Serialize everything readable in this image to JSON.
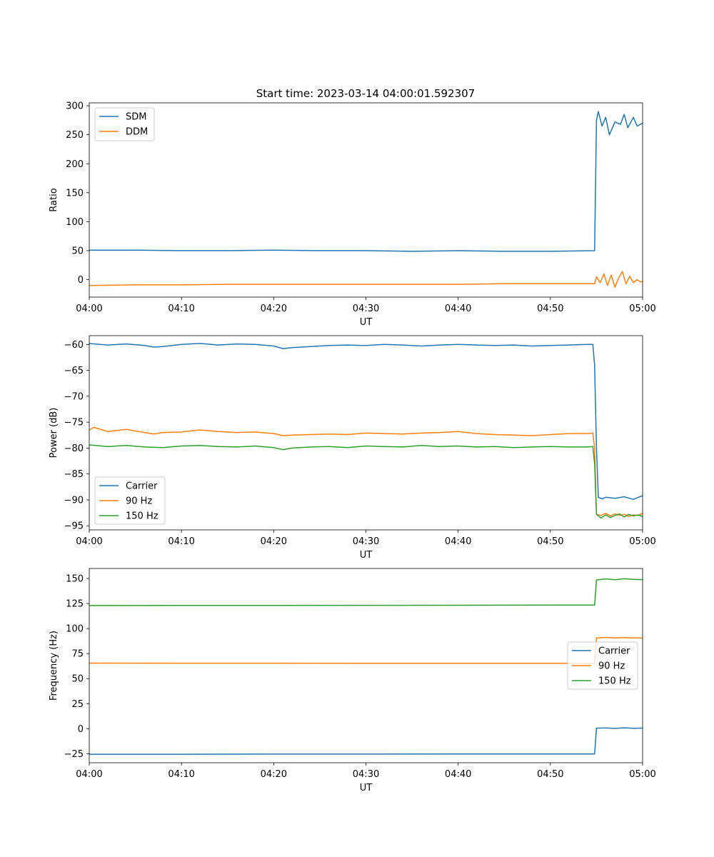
{
  "title": "Start time: 2023-03-14 04:00:01.592307",
  "chart_data": [
    {
      "type": "line",
      "xlabel": "UT",
      "ylabel": "Ratio",
      "x_unit": "minutes after 04:00 UT",
      "xlim": [
        0,
        60
      ],
      "ylim": [
        -30,
        305
      ],
      "xticks": [
        0,
        10,
        20,
        30,
        40,
        50,
        60
      ],
      "xtick_labels": [
        "04:00",
        "04:10",
        "04:20",
        "04:30",
        "04:40",
        "04:50",
        "05:00"
      ],
      "yticks": [
        0,
        50,
        100,
        150,
        200,
        250,
        300
      ],
      "ytick_labels": [
        "0",
        "50",
        "100",
        "150",
        "200",
        "250",
        "300"
      ],
      "legend_position": "upper-left",
      "series": [
        {
          "name": "SDM",
          "color": "#1f77b4",
          "x": [
            0,
            5,
            10,
            15,
            20,
            25,
            30,
            35,
            40,
            45,
            50,
            54.8,
            55,
            55.2,
            55.6,
            56,
            56.4,
            57,
            57.6,
            58,
            58.4,
            59,
            59.4,
            60
          ],
          "y": [
            51,
            51,
            50,
            50,
            51,
            50,
            50,
            49,
            50,
            49,
            49,
            50,
            275,
            290,
            265,
            280,
            250,
            272,
            268,
            285,
            262,
            280,
            265,
            270
          ]
        },
        {
          "name": "DDM",
          "color": "#ff7f0e",
          "x": [
            0,
            5,
            10,
            15,
            20,
            25,
            30,
            35,
            40,
            45,
            50,
            54.8,
            55,
            55.4,
            55.8,
            56.2,
            56.6,
            57,
            57.4,
            57.8,
            58.2,
            58.6,
            59,
            59.4,
            59.8,
            60
          ],
          "y": [
            -10,
            -9,
            -9,
            -8,
            -8,
            -8,
            -8,
            -8,
            -8,
            -7,
            -7,
            -7,
            5,
            -5,
            10,
            -10,
            8,
            -13,
            3,
            14,
            -7,
            6,
            -5,
            0,
            -4,
            -3
          ]
        }
      ]
    },
    {
      "type": "line",
      "xlabel": "UT",
      "ylabel": "Power (dB)",
      "x_unit": "minutes after 04:00 UT",
      "xlim": [
        0,
        60
      ],
      "ylim": [
        -95.8,
        -58.3
      ],
      "xticks": [
        0,
        10,
        20,
        30,
        40,
        50,
        60
      ],
      "xtick_labels": [
        "04:00",
        "04:10",
        "04:20",
        "04:30",
        "04:40",
        "04:50",
        "05:00"
      ],
      "yticks": [
        -95,
        -90,
        -85,
        -80,
        -75,
        -70,
        -65,
        -60
      ],
      "ytick_labels": [
        "−95",
        "−90",
        "−85",
        "−80",
        "−75",
        "−70",
        "−65",
        "−60"
      ],
      "legend_position": "lower-left",
      "series": [
        {
          "name": "Carrier",
          "color": "#1f77b4",
          "x": [
            0,
            2,
            4,
            6,
            7,
            8,
            10,
            12,
            14,
            16,
            18,
            20,
            21,
            22,
            24,
            26,
            28,
            30,
            32,
            34,
            36,
            38,
            40,
            42,
            44,
            46,
            48,
            50,
            52,
            54,
            54.6,
            54.8,
            55,
            55.2,
            55.6,
            56,
            57,
            58,
            59,
            60
          ],
          "y": [
            -59.8,
            -60.1,
            -59.9,
            -60.2,
            -60.5,
            -60.4,
            -60.0,
            -59.8,
            -60.1,
            -59.9,
            -60.0,
            -60.3,
            -60.8,
            -60.6,
            -60.4,
            -60.2,
            -60.1,
            -60.2,
            -60.0,
            -60.1,
            -60.3,
            -60.1,
            -60.0,
            -60.1,
            -60.2,
            -60.1,
            -60.3,
            -60.2,
            -60.1,
            -60.0,
            -60.0,
            -64,
            -80,
            -89.5,
            -89.8,
            -89.5,
            -89.7,
            -89.4,
            -89.9,
            -89.2
          ]
        },
        {
          "name": "90 Hz",
          "color": "#ff7f0e",
          "x": [
            0,
            0.5,
            2,
            4,
            6,
            7,
            8,
            10,
            12,
            14,
            16,
            18,
            20,
            21,
            22,
            24,
            26,
            28,
            30,
            32,
            34,
            36,
            38,
            40,
            42,
            44,
            46,
            48,
            50,
            52,
            54,
            54.6,
            54.8,
            55,
            55.5,
            56,
            56.5,
            57,
            57.5,
            58,
            58.5,
            59,
            59.5,
            60
          ],
          "y": [
            -76.5,
            -76.0,
            -76.8,
            -76.4,
            -77.0,
            -77.3,
            -77.0,
            -76.9,
            -76.5,
            -76.8,
            -77.0,
            -76.9,
            -77.2,
            -77.6,
            -77.5,
            -77.4,
            -77.3,
            -77.4,
            -77.1,
            -77.2,
            -77.3,
            -77.1,
            -77.0,
            -76.8,
            -77.2,
            -77.4,
            -77.5,
            -77.6,
            -77.4,
            -77.2,
            -77.2,
            -77.1,
            -80,
            -92.8,
            -93.0,
            -92.6,
            -93.1,
            -92.7,
            -93.0,
            -92.8,
            -93.2,
            -92.9,
            -93.0,
            -92.6
          ]
        },
        {
          "name": "150 Hz",
          "color": "#2ca02c",
          "x": [
            0,
            2,
            4,
            6,
            8,
            10,
            12,
            14,
            16,
            18,
            20,
            21,
            22,
            24,
            26,
            28,
            30,
            32,
            34,
            36,
            38,
            40,
            42,
            44,
            46,
            48,
            50,
            52,
            54,
            54.6,
            54.8,
            55,
            55.5,
            56,
            56.5,
            57,
            57.5,
            58,
            58.5,
            59,
            59.5,
            60
          ],
          "y": [
            -79.4,
            -79.7,
            -79.5,
            -79.8,
            -79.9,
            -79.6,
            -79.5,
            -79.7,
            -79.8,
            -79.6,
            -79.9,
            -80.3,
            -80.0,
            -79.8,
            -79.7,
            -79.9,
            -79.6,
            -79.7,
            -79.8,
            -79.5,
            -79.7,
            -79.6,
            -79.8,
            -79.7,
            -79.9,
            -79.8,
            -79.7,
            -79.8,
            -79.8,
            -79.7,
            -83,
            -92.8,
            -93.5,
            -92.9,
            -93.4,
            -93.0,
            -92.7,
            -93.3,
            -92.8,
            -93.1,
            -92.9,
            -93.2
          ]
        }
      ]
    },
    {
      "type": "line",
      "xlabel": "UT",
      "ylabel": "Frequency (Hz)",
      "x_unit": "minutes after 04:00 UT",
      "xlim": [
        0,
        60
      ],
      "ylim": [
        -34,
        160
      ],
      "xticks": [
        0,
        10,
        20,
        30,
        40,
        50,
        60
      ],
      "xtick_labels": [
        "04:00",
        "04:10",
        "04:20",
        "04:30",
        "04:40",
        "04:50",
        "05:00"
      ],
      "yticks": [
        -25,
        0,
        25,
        50,
        75,
        100,
        125,
        150
      ],
      "ytick_labels": [
        "−25",
        "0",
        "25",
        "50",
        "75",
        "100",
        "125",
        "150"
      ],
      "legend_position": "center-right",
      "series": [
        {
          "name": "Carrier",
          "color": "#1f77b4",
          "x": [
            0,
            10,
            20,
            30,
            40,
            50,
            54.8,
            55,
            56,
            57,
            58,
            59,
            60
          ],
          "y": [
            -25.5,
            -25.5,
            -25.4,
            -25.4,
            -25.3,
            -25.2,
            -25.2,
            0.5,
            0.8,
            0.3,
            0.9,
            0.4,
            0.6
          ]
        },
        {
          "name": "90 Hz",
          "color": "#ff7f0e",
          "x": [
            0,
            10,
            20,
            30,
            40,
            50,
            54.8,
            55,
            56,
            57,
            58,
            59,
            60
          ],
          "y": [
            65.5,
            65.4,
            65.4,
            65.3,
            65.3,
            65.3,
            65.3,
            90.5,
            91.2,
            90.6,
            91.0,
            90.7,
            90.5
          ]
        },
        {
          "name": "150 Hz",
          "color": "#2ca02c",
          "x": [
            0,
            10,
            20,
            30,
            40,
            50,
            54.8,
            55,
            56,
            57,
            58,
            59,
            60
          ],
          "y": [
            123.0,
            123.1,
            123.1,
            123.2,
            123.3,
            123.4,
            123.4,
            148.5,
            149.6,
            148.8,
            149.7,
            149.1,
            148.9
          ]
        }
      ]
    }
  ]
}
